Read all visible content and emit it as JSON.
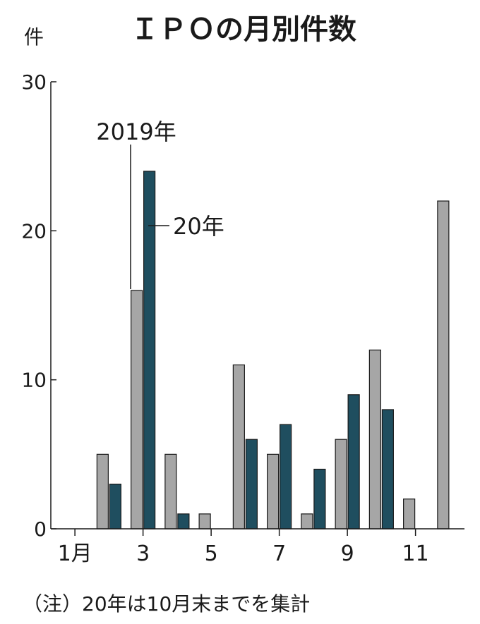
{
  "chart_data": {
    "type": "bar",
    "title": "ＩＰＯの月別件数",
    "ylabel": "件",
    "ylim": [
      0,
      30
    ],
    "y_ticks": [
      "0",
      "10",
      "20",
      "30"
    ],
    "grid": false,
    "categories": [
      "1",
      "2",
      "3",
      "4",
      "5",
      "6",
      "7",
      "8",
      "9",
      "10",
      "11",
      "12"
    ],
    "x_tick_labels": [
      "1月",
      "",
      "3",
      "",
      "5",
      "",
      "7",
      "",
      "9",
      "",
      "11",
      ""
    ],
    "series": [
      {
        "name": "2019年",
        "color": "#a6a6a6",
        "values": [
          0,
          5,
          16,
          5,
          1,
          11,
          5,
          1,
          6,
          12,
          2,
          22
        ]
      },
      {
        "name": "20年",
        "color": "#1f4e5f",
        "values": [
          0,
          3,
          24,
          1,
          0,
          6,
          7,
          4,
          9,
          8,
          null,
          null
        ]
      }
    ],
    "note": "（注）20年は10月末までを集計"
  }
}
